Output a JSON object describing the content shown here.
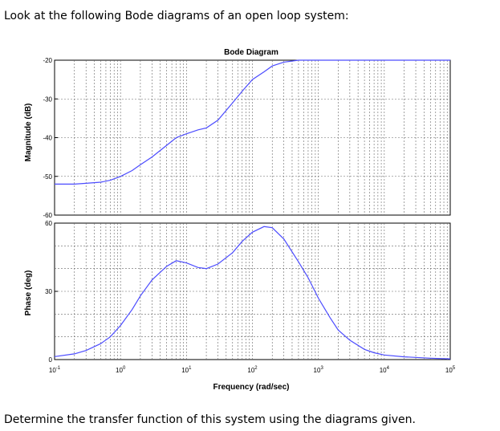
{
  "question": {
    "intro": "Look at the following Bode diagrams of an open loop system:",
    "task": "Determine the transfer function of this system using the diagrams given."
  },
  "chart_data": [
    {
      "type": "line",
      "title": "Bode Diagram",
      "ylabel": "Magnitude (dB)",
      "xlabel": "",
      "xscale": "log",
      "xlim": [
        0.1,
        100000
      ],
      "ylim": [
        -60,
        -20
      ],
      "yticks": [
        -60,
        -50,
        -40,
        -30,
        -20
      ],
      "grid": true,
      "color": "#4c4cff",
      "series": [
        {
          "x": [
            0.1,
            0.2,
            0.3,
            0.5,
            0.7,
            1,
            1.5,
            2,
            3,
            5,
            7,
            10,
            15,
            20,
            30,
            50,
            70,
            100,
            150,
            200,
            300,
            500,
            700,
            1000,
            1500,
            2000,
            3000,
            5000,
            7000,
            10000,
            20000,
            50000,
            100000
          ],
          "y": [
            -52,
            -52,
            -51.8,
            -51.5,
            -51,
            -50,
            -48.5,
            -47,
            -45,
            -42,
            -40,
            -39,
            -38,
            -37.5,
            -35.5,
            -31,
            -28,
            -25,
            -23,
            -21.5,
            -20.5,
            -20,
            -20,
            -20,
            -20,
            -20,
            -20,
            -20,
            -20,
            -20,
            -20,
            -20,
            -20
          ]
        }
      ]
    },
    {
      "type": "line",
      "title": "",
      "ylabel": "Phase (deg)",
      "xlabel": "Frequency (rad/sec)",
      "xscale": "log",
      "xlim": [
        0.1,
        100000
      ],
      "ylim": [
        0,
        60
      ],
      "yticks": [
        0,
        30,
        60
      ],
      "xticks": [
        "10^-1",
        "10^0",
        "10^1",
        "10^2",
        "10^3",
        "10^4",
        "10^5"
      ],
      "grid": true,
      "color": "#4c4cff",
      "series": [
        {
          "x": [
            0.1,
            0.2,
            0.3,
            0.5,
            0.7,
            1,
            1.5,
            2,
            3,
            5,
            7,
            10,
            15,
            20,
            30,
            50,
            70,
            100,
            150,
            200,
            300,
            500,
            700,
            1000,
            1500,
            2000,
            3000,
            5000,
            7000,
            10000,
            20000,
            50000,
            100000
          ],
          "y": [
            1.3,
            2.5,
            4,
            7,
            10,
            15,
            22,
            28,
            35,
            41,
            43.5,
            42.5,
            40.5,
            40,
            42,
            47,
            52,
            56,
            58.5,
            58,
            53,
            43,
            36,
            27,
            18.5,
            13,
            8.5,
            4.5,
            3,
            2,
            1.2,
            0.6,
            0.3
          ]
        }
      ]
    }
  ]
}
